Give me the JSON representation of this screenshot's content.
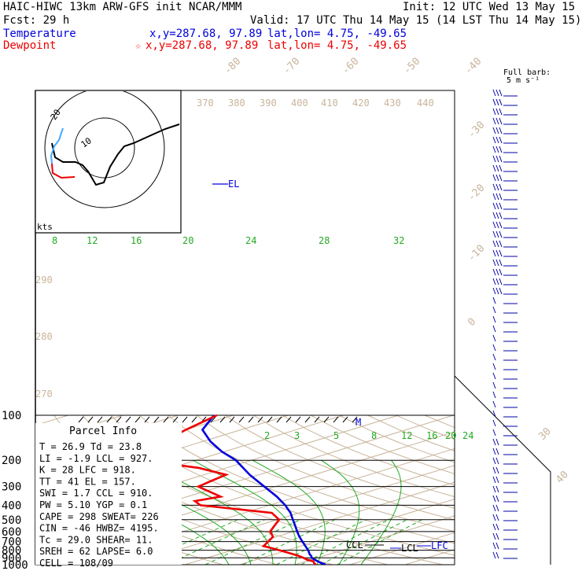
{
  "header": {
    "line1_left": "HAIC-HIWC 13km ARW-GFS init   NCAR/MMM",
    "line1_right": "Init: 12 UTC Wed 13 May 15",
    "line2_left": "Fcst:    29 h",
    "line2_right": "Valid: 17 UTC Thu 14 May 15 (14 LST Thu 14 May 15)",
    "temp_label": "Temperature",
    "temp_xy": "x,y=287.68, 97.89",
    "temp_latlon": "lat,lon=  4.75, -49.65",
    "dew_label": "Dewpoint",
    "dew_xy": "x,y=287.68, 97.89",
    "dew_latlon": "lat,lon=  4.75, -49.65",
    "dew_marker": "☆"
  },
  "barb_legend": {
    "line1": "Full barb:",
    "line2": "5 m s⁻¹"
  },
  "hodograph": {
    "units": "kts",
    "ring_labels": [
      "10",
      "20"
    ]
  },
  "parcel": {
    "title": "Parcel Info",
    "rows": [
      "T   =   26.9  Td =   23.8",
      "LI  =   -1.9  LCL =  927.",
      "K   =     28  LFC =  918.",
      "TT  =     41  EL  =  157.",
      "SWI =    1.7  CCL =  910.",
      "PW  =   5.10  YGP =   0.1",
      "CAPE =   298  SWEAT=  226",
      "CIN  =   -46  HWBZ= 4195.",
      "Tc  =   29.0  SHEAR=  11.",
      "SREH =    62  LAPSE=  6.0",
      "CELL = 108/09"
    ]
  },
  "levels": {
    "el": "EL",
    "m": "M",
    "ccl": "CCL",
    "lcl": "LCL",
    "lfc": "LFC"
  },
  "colors": {
    "temperature": "#0000dd",
    "dewpoint": "#ee0000",
    "isotherm": "#c8b49a",
    "adiabat": "#c8b49a",
    "moist": "#22aa22",
    "mixing": "#22aa22",
    "grid": "#000000",
    "barb": "#0000aa"
  },
  "chart_data": {
    "type": "line",
    "y_axis": "Pressure (hPa)",
    "ylim": [
      1000,
      100
    ],
    "y_scale": "log",
    "pressure_ticks": [
      "100",
      "200",
      "300",
      "400",
      "500",
      "600",
      "700",
      "800",
      "900",
      "1000"
    ],
    "isotherm_labels": [
      "-80",
      "-70",
      "-60",
      "-50",
      "-40",
      "-30",
      "-20",
      "-10",
      "0",
      "30",
      "40"
    ],
    "isotherm_values": [
      -80,
      -70,
      -60,
      -50,
      -40,
      -30,
      -20,
      -10,
      0,
      30,
      40
    ],
    "theta_labels": [
      "370",
      "380",
      "390",
      "400",
      "410",
      "420",
      "430",
      "440",
      "290",
      "280",
      "270"
    ],
    "moist_labels": [
      "8",
      "12",
      "16",
      "20",
      "24",
      "28",
      "32"
    ],
    "mixing_labels": [
      "2",
      "3",
      "5",
      "8",
      "12",
      "16",
      "20",
      "24"
    ],
    "series": [
      {
        "name": "Temperature",
        "color": "#0000dd",
        "points": [
          [
            1000,
            25.6
          ],
          [
            975,
            23.8
          ],
          [
            950,
            22.2
          ],
          [
            925,
            20.6
          ],
          [
            900,
            19.0
          ],
          [
            875,
            17.8
          ],
          [
            850,
            16.4
          ],
          [
            800,
            13.8
          ],
          [
            750,
            10.8
          ],
          [
            700,
            7.6
          ],
          [
            650,
            4.2
          ],
          [
            600,
            0.7
          ],
          [
            550,
            -3.0
          ],
          [
            500,
            -7.1
          ],
          [
            450,
            -11.6
          ],
          [
            400,
            -17.1
          ],
          [
            350,
            -23.8
          ],
          [
            300,
            -32.0
          ],
          [
            250,
            -41.7
          ],
          [
            200,
            -52.8
          ],
          [
            175,
            -60.5
          ],
          [
            150,
            -68.5
          ],
          [
            125,
            -77.0
          ],
          [
            100,
            -83.5
          ]
        ]
      },
      {
        "name": "Dewpoint",
        "color": "#ee0000",
        "points": [
          [
            1000,
            23.8
          ],
          [
            975,
            22.5
          ],
          [
            950,
            21.4
          ],
          [
            925,
            19.2
          ],
          [
            900,
            17.5
          ],
          [
            875,
            15.6
          ],
          [
            850,
            13.4
          ],
          [
            800,
            8.6
          ],
          [
            750,
            3.2
          ],
          [
            700,
            1.4
          ],
          [
            650,
            -0.6
          ],
          [
            600,
            -4.2
          ],
          [
            550,
            -6.8
          ],
          [
            500,
            -9.6
          ],
          [
            450,
            -15.0
          ],
          [
            400,
            -32.5
          ],
          [
            375,
            -36.0
          ],
          [
            350,
            -34.0
          ],
          [
            300,
            -44.0
          ],
          [
            275,
            -45.0
          ],
          [
            250,
            -46.0
          ],
          [
            225,
            -55.0
          ],
          [
            200,
            -70.0
          ],
          [
            175,
            -73.0
          ],
          [
            150,
            -77.0
          ],
          [
            125,
            -80.0
          ],
          [
            100,
            -83.0
          ]
        ]
      }
    ]
  }
}
